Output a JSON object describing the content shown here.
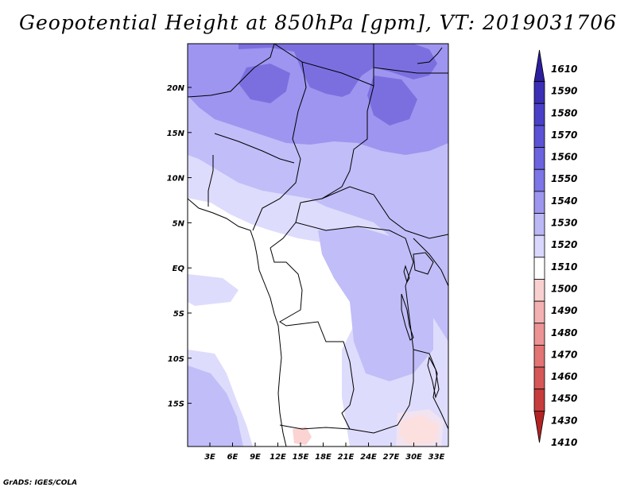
{
  "title": "Geopotential Height at 850hPa [gpm], VT: 2019031706",
  "footer": "GrADS: IGES/COLA",
  "map": {
    "lat_labels": [
      "20N",
      "15N",
      "10N",
      "5N",
      "EQ",
      "5S",
      "10S",
      "15S"
    ],
    "lon_labels": [
      "3E",
      "6E",
      "9E",
      "12E",
      "15E",
      "18E",
      "21E",
      "24E",
      "27E",
      "30E",
      "33E"
    ],
    "field_colors": {
      "1550": "#7b6fe0",
      "1540": "#9e95f0",
      "1530": "#c1bdf8",
      "1520": "#dedcfc",
      "1510": "#ffffff",
      "1500": "#fbd3d3"
    }
  },
  "colorbar": {
    "levels": [
      "1610",
      "1590",
      "1580",
      "1570",
      "1560",
      "1550",
      "1540",
      "1530",
      "1520",
      "1510",
      "1500",
      "1490",
      "1480",
      "1470",
      "1460",
      "1450",
      "1430",
      "1410"
    ],
    "colors": [
      "#2c1e9e",
      "#3a2fb5",
      "#4a40c8",
      "#5b52d6",
      "#6c64de",
      "#7d76e6",
      "#9d97ef",
      "#bcb8f6",
      "#d9d7fb",
      "#ffffff",
      "#f9d0d0",
      "#f3b1b1",
      "#ec9393",
      "#e27474",
      "#d65757",
      "#c73c3c",
      "#b22424"
    ]
  }
}
